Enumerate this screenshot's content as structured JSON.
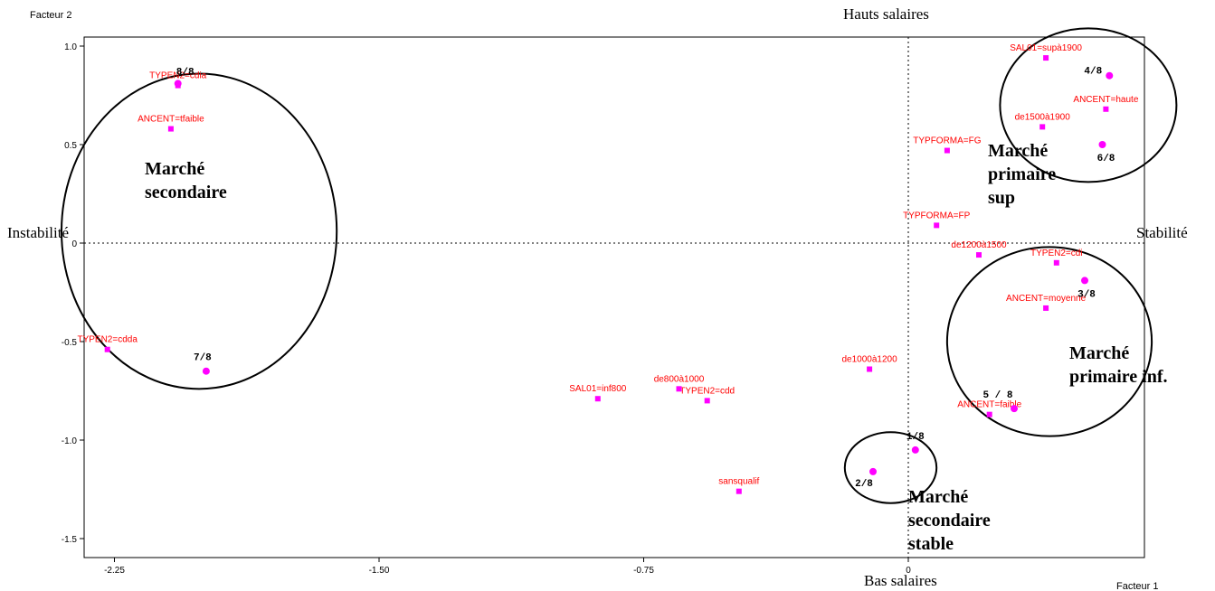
{
  "chart_data": {
    "type": "scatter",
    "xlabel": "Facteur 1",
    "ylabel": "Facteur 2",
    "xlim": [
      -2.35,
      0.65
    ],
    "ylim": [
      -1.6,
      1.05
    ],
    "xticks": [
      {
        "v": -2.25,
        "label": "-2.25"
      },
      {
        "v": -1.5,
        "label": "-1.50"
      },
      {
        "v": -0.75,
        "label": "-0.75"
      },
      {
        "v": 0,
        "label": "0"
      }
    ],
    "yticks": [
      {
        "v": 1.0,
        "label": "1.0"
      },
      {
        "v": 0.5,
        "label": "0.5"
      },
      {
        "v": 0,
        "label": "0"
      },
      {
        "v": -0.5,
        "label": "-0.5"
      },
      {
        "v": -1.0,
        "label": "-1.0"
      },
      {
        "v": -1.5,
        "label": "-1.5"
      }
    ],
    "grid": false,
    "reference_lines": "x=0, y=0 (dotted)",
    "accent_color": "#ff00ff",
    "label_color": "#ff0000",
    "modalities": [
      {
        "label": "SAL01=supà1900",
        "x": 0.39,
        "y": 0.94
      },
      {
        "label": "ANCENT=haute",
        "x": 0.56,
        "y": 0.68
      },
      {
        "label": "de1500à1900",
        "x": 0.38,
        "y": 0.59
      },
      {
        "label": "TYPFORMA=FG",
        "x": 0.11,
        "y": 0.47
      },
      {
        "label": "TYPFORMA=FP",
        "x": 0.08,
        "y": 0.09
      },
      {
        "label": "de1200à1500",
        "x": 0.2,
        "y": -0.06
      },
      {
        "label": "TYPEN2=cdi",
        "x": 0.42,
        "y": -0.1
      },
      {
        "label": "ANCENT=moyenne",
        "x": 0.39,
        "y": -0.33
      },
      {
        "label": "de1000à1200",
        "x": -0.11,
        "y": -0.64
      },
      {
        "label": "ANCENT=faible",
        "x": 0.23,
        "y": -0.87
      },
      {
        "label": "sansqualif",
        "x": -0.48,
        "y": -1.26
      },
      {
        "label": "TYPEN2=cdd",
        "x": -0.57,
        "y": -0.8
      },
      {
        "label": "de800à1000",
        "x": -0.65,
        "y": -0.74
      },
      {
        "label": "SAL01=inf800",
        "x": -0.88,
        "y": -0.79
      },
      {
        "label": "TYPEN2=cdda",
        "x": -2.27,
        "y": -0.54
      },
      {
        "label": "ANCENT=tfaible",
        "x": -2.09,
        "y": 0.58
      },
      {
        "label": "TYPEN2=cdia",
        "x": -2.07,
        "y": 0.8
      }
    ],
    "groups": [
      {
        "label": "1/8",
        "x": 0.02,
        "y": -1.05
      },
      {
        "label": "2/8",
        "x": -0.1,
        "y": -1.16
      },
      {
        "label": "3/8",
        "x": 0.5,
        "y": -0.19
      },
      {
        "label": "4/8",
        "x": 0.57,
        "y": 0.85
      },
      {
        "label": "5 / 8",
        "x": 0.3,
        "y": -0.84
      },
      {
        "label": "6/8",
        "x": 0.55,
        "y": 0.5
      },
      {
        "label": "7/8",
        "x": -1.99,
        "y": -0.65
      },
      {
        "label": "8/8",
        "x": -2.07,
        "y": 0.81
      }
    ],
    "axis_poles": {
      "top": "Hauts salaires",
      "bottom": "Bas salaires",
      "left": "Instabilité",
      "right": "Stabilité"
    },
    "regions": [
      {
        "lines": [
          "Marché",
          "secondaire"
        ],
        "ellipse": {
          "cx": -2.01,
          "cy": 0.06,
          "rx": 0.39,
          "ry": 0.8
        }
      },
      {
        "lines": [
          "Marché",
          "primaire",
          "sup"
        ],
        "ellipse": {
          "cx": 0.51,
          "cy": 0.7,
          "rx": 0.25,
          "ry": 0.39
        }
      },
      {
        "lines": [
          "Marché",
          "primaire inf."
        ],
        "ellipse": {
          "cx": 0.4,
          "cy": -0.5,
          "rx": 0.29,
          "ry": 0.48
        }
      },
      {
        "lines": [
          "Marché",
          "secondaire",
          "stable"
        ],
        "ellipse": {
          "cx": -0.05,
          "cy": -1.14,
          "rx": 0.13,
          "ry": 0.18
        }
      }
    ]
  }
}
